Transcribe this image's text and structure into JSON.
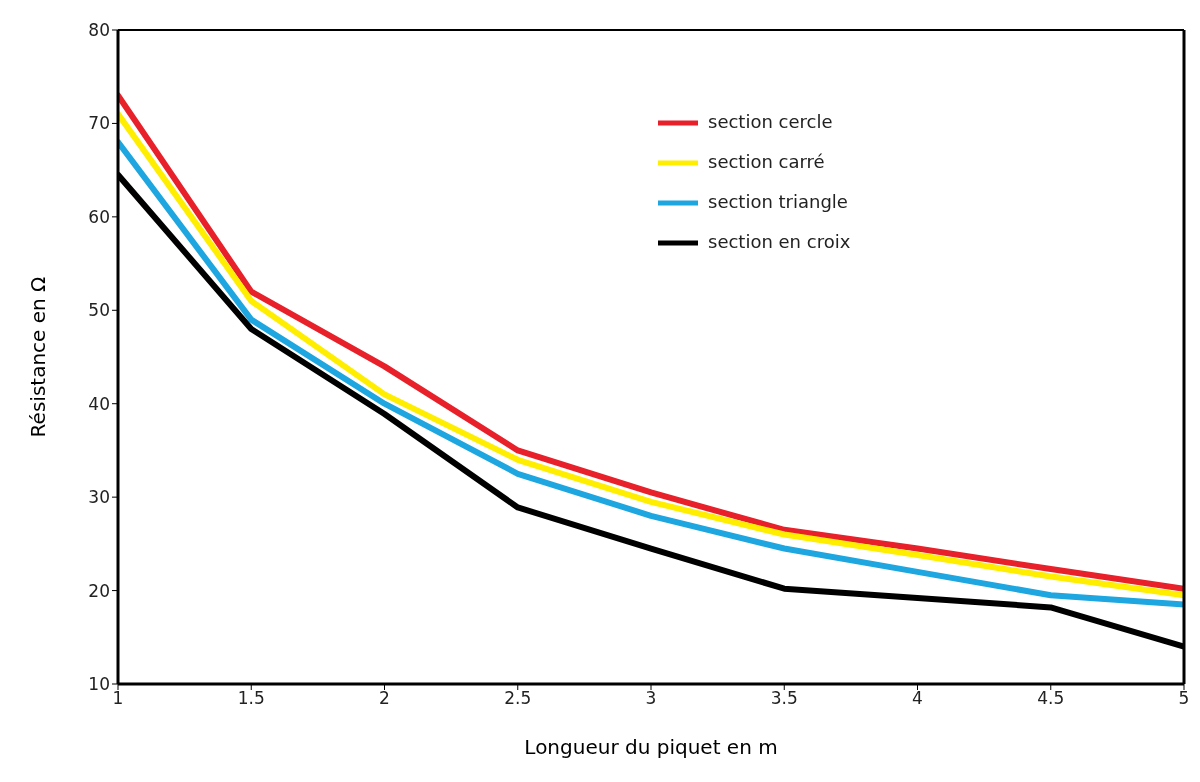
{
  "chart_data": {
    "type": "line",
    "xlabel": "Longueur du piquet en m",
    "ylabel": "Résistance en Ω",
    "x": [
      1,
      1.5,
      2,
      2.5,
      3,
      3.5,
      4,
      4.5,
      5
    ],
    "series": [
      {
        "name": "section cercle",
        "color": "#e8202a",
        "values": [
          73,
          52,
          44,
          35,
          30.5,
          26.5,
          24.5,
          22.3,
          20.2
        ]
      },
      {
        "name": "section carré",
        "color": "#ffee00",
        "values": [
          71,
          51,
          41,
          34,
          29.5,
          26,
          23.8,
          21.5,
          19.5
        ]
      },
      {
        "name": "section triangle",
        "color": "#1ea6e0",
        "values": [
          68,
          49,
          40,
          32.5,
          28,
          24.5,
          22,
          19.5,
          18.5
        ]
      },
      {
        "name": "section en croix",
        "color": "#000000",
        "values": [
          64.5,
          48,
          38.9,
          28.9,
          24.5,
          20.2,
          19.2,
          18.2,
          14
        ]
      }
    ],
    "xlim": [
      1,
      5
    ],
    "xticks": [
      1,
      1.5,
      2,
      2.5,
      3,
      3.5,
      4,
      4.5,
      5
    ],
    "ylim": [
      10,
      80
    ],
    "yticks": [
      10,
      20,
      30,
      40,
      50,
      60,
      70,
      80
    ],
    "grid": false,
    "legend": "top right",
    "marker": "none",
    "line_style": "solid"
  }
}
